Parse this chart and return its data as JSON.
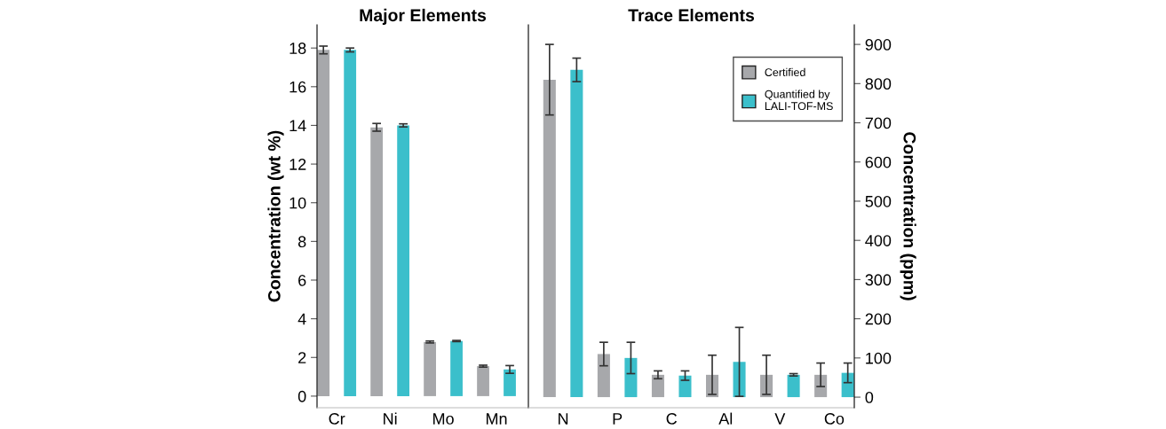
{
  "chart_data": [
    {
      "type": "bar",
      "title": "Major Elements",
      "ylabel": "Concentration (wt %)",
      "categories": [
        "Cr",
        "Ni",
        "Mo",
        "Mn"
      ],
      "ylim": [
        -0.6,
        19.2
      ],
      "yticks": [
        0,
        2,
        4,
        6,
        8,
        10,
        12,
        14,
        16,
        18
      ],
      "grid": false,
      "legend": false,
      "series": [
        {
          "color": "#a7a8ab",
          "values": [
            17.9,
            13.9,
            2.8,
            1.55
          ],
          "errors": [
            0.2,
            0.2,
            0.05,
            0.05
          ]
        },
        {
          "color": "#3bbfcb",
          "values": [
            17.9,
            14.0,
            2.85,
            1.38
          ],
          "errors": [
            0.1,
            0.08,
            0.03,
            0.2
          ]
        }
      ]
    },
    {
      "type": "bar",
      "title": "Trace Elements",
      "y2label": "Concentration (ppm)",
      "categories": [
        "N",
        "P",
        "C",
        "Al",
        "V",
        "Co"
      ],
      "y2lim": [
        -27,
        950
      ],
      "y2ticks": [
        0,
        100,
        200,
        300,
        400,
        500,
        600,
        700,
        800,
        900
      ],
      "grid": false,
      "legend": "top right",
      "series": [
        {
          "name": "Certified",
          "color": "#a7a8ab",
          "axis": "y2",
          "values": [
            810,
            110,
            57,
            57,
            57,
            57
          ],
          "errors": [
            90,
            30,
            10,
            50,
            50,
            30
          ]
        },
        {
          "name": "Quantified by\nLALI-TOF-MS",
          "color": "#3bbfcb",
          "axis": "y2",
          "values": [
            835,
            100,
            55,
            90,
            57,
            62
          ],
          "errors": [
            30,
            40,
            12,
            88,
            3,
            25
          ]
        }
      ]
    }
  ]
}
